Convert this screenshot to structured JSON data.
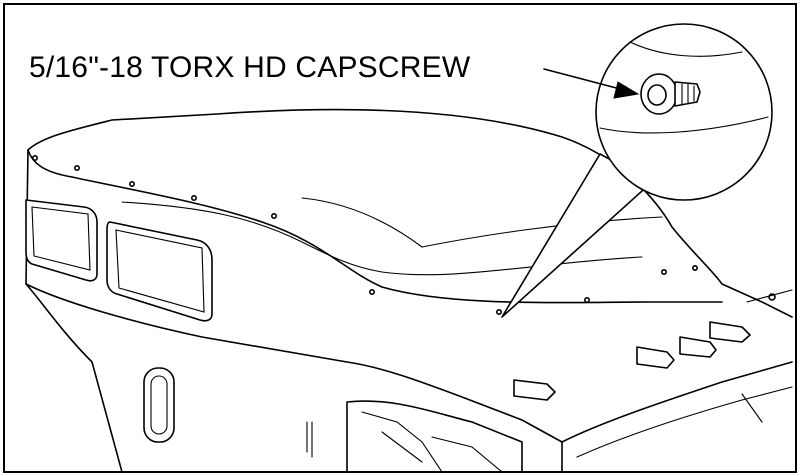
{
  "callout": {
    "label": "5/16\"-18 TORX HD CAPSCREW"
  }
}
